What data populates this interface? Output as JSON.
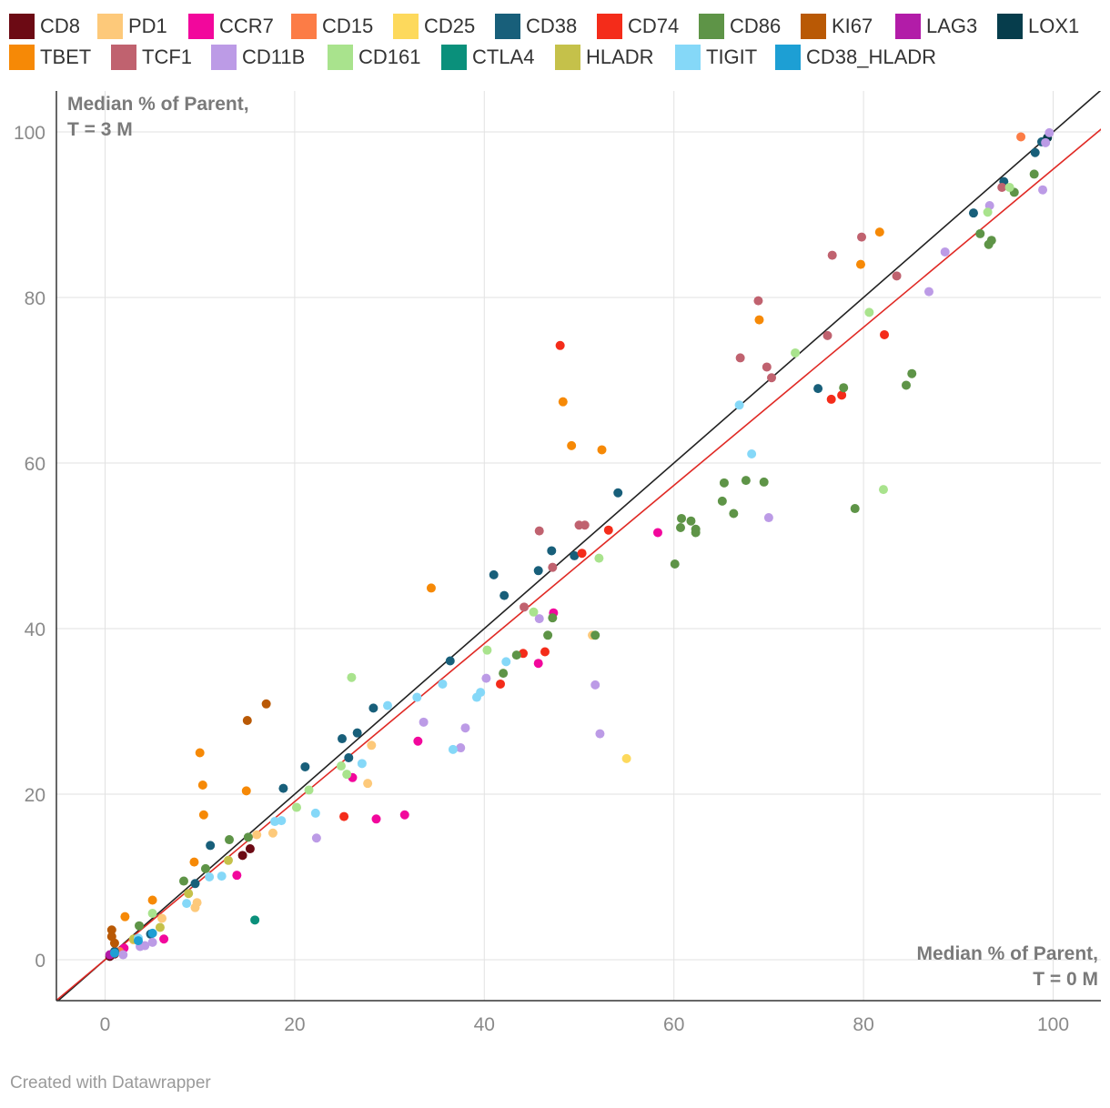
{
  "legend": [
    {
      "name": "CD8",
      "color": "#6c0a14"
    },
    {
      "name": "PD1",
      "color": "#fdc97a"
    },
    {
      "name": "CCR7",
      "color": "#f2079c"
    },
    {
      "name": "CD15",
      "color": "#fc7c46"
    },
    {
      "name": "CD25",
      "color": "#fdd95c"
    },
    {
      "name": "CD38",
      "color": "#185f7a"
    },
    {
      "name": "CD74",
      "color": "#f42c1a"
    },
    {
      "name": "CD86",
      "color": "#5e9447"
    },
    {
      "name": "KI67",
      "color": "#b95905"
    },
    {
      "name": "LAG3",
      "color": "#b21ca8"
    },
    {
      "name": "LOX1",
      "color": "#063d4c"
    },
    {
      "name": "TBET",
      "color": "#f68906"
    },
    {
      "name": "TCF1",
      "color": "#c0626f"
    },
    {
      "name": "CD11B",
      "color": "#bc9be6"
    },
    {
      "name": "CD161",
      "color": "#a9e38d"
    },
    {
      "name": "CTLA4",
      "color": "#0a907b"
    },
    {
      "name": "HLADR",
      "color": "#c5c14a"
    },
    {
      "name": "TIGIT",
      "color": "#85d8f8"
    },
    {
      "name": "CD38_HLADR",
      "color": "#1d9fd4"
    }
  ],
  "footer": "Created with Datawrapper",
  "chart_data": {
    "type": "scatter",
    "title": "",
    "annotation_y": [
      "Median % of Parent,",
      "T = 3 M"
    ],
    "annotation_x": [
      "Median % of Parent,",
      "T = 0 M"
    ],
    "xlim": [
      -5,
      105
    ],
    "ylim": [
      -5,
      105
    ],
    "x_ticks": [
      0,
      20,
      40,
      60,
      80,
      100
    ],
    "y_ticks": [
      0,
      20,
      40,
      60,
      80,
      100
    ],
    "reference_lines": [
      {
        "name": "identity",
        "color": "#222222",
        "slope": 1.0,
        "intercept": 0
      },
      {
        "name": "fit",
        "color": "#e02a25",
        "slope": 0.955,
        "intercept": 0
      }
    ],
    "series": [
      {
        "name": "CD8",
        "points": [
          [
            14.5,
            12.6
          ],
          [
            15.3,
            13.4
          ],
          [
            0.5,
            0.4
          ],
          [
            1.0,
            0.7
          ]
        ]
      },
      {
        "name": "PD1",
        "points": [
          [
            9.5,
            6.3
          ],
          [
            9.7,
            6.9
          ],
          [
            16.0,
            15.1
          ],
          [
            17.7,
            15.3
          ],
          [
            27.7,
            21.3
          ],
          [
            28.1,
            25.9
          ],
          [
            51.4,
            39.2
          ],
          [
            6.0,
            5.0
          ],
          [
            3.0,
            2.4
          ]
        ]
      },
      {
        "name": "CCR7",
        "points": [
          [
            6.2,
            2.5
          ],
          [
            13.9,
            10.2
          ],
          [
            26.1,
            22.0
          ],
          [
            28.6,
            17.0
          ],
          [
            31.6,
            17.5
          ],
          [
            33.0,
            26.4
          ],
          [
            45.7,
            35.8
          ],
          [
            47.3,
            41.9
          ],
          [
            58.3,
            51.6
          ],
          [
            2.0,
            1.4
          ]
        ]
      },
      {
        "name": "CD15",
        "points": [
          [
            96.6,
            99.4
          ],
          [
            1.5,
            1.0
          ]
        ]
      },
      {
        "name": "CD25",
        "points": [
          [
            55.0,
            24.3
          ]
        ]
      },
      {
        "name": "CD38",
        "points": [
          [
            1.0,
            1.0
          ],
          [
            4.8,
            3.1
          ],
          [
            9.5,
            9.2
          ],
          [
            11.1,
            13.8
          ],
          [
            18.8,
            20.7
          ],
          [
            21.1,
            23.3
          ],
          [
            25.0,
            26.7
          ],
          [
            25.7,
            24.4
          ],
          [
            26.6,
            27.4
          ],
          [
            28.3,
            30.4
          ],
          [
            36.4,
            36.1
          ],
          [
            41.0,
            46.5
          ],
          [
            42.1,
            44.0
          ],
          [
            45.7,
            47.0
          ],
          [
            47.1,
            49.4
          ],
          [
            49.5,
            48.8
          ],
          [
            54.1,
            56.4
          ],
          [
            75.2,
            69.0
          ],
          [
            91.6,
            90.2
          ],
          [
            94.8,
            94.0
          ],
          [
            98.1,
            97.5
          ],
          [
            98.8,
            98.8
          ]
        ]
      },
      {
        "name": "CD74",
        "points": [
          [
            25.2,
            17.3
          ],
          [
            41.7,
            33.3
          ],
          [
            44.1,
            37.0
          ],
          [
            46.4,
            37.2
          ],
          [
            48.0,
            74.2
          ],
          [
            50.3,
            49.1
          ],
          [
            53.1,
            51.9
          ],
          [
            76.6,
            67.7
          ],
          [
            77.7,
            68.2
          ],
          [
            82.2,
            75.5
          ]
        ]
      },
      {
        "name": "CD86",
        "points": [
          [
            3.6,
            4.1
          ],
          [
            8.3,
            9.5
          ],
          [
            10.6,
            11.0
          ],
          [
            13.1,
            14.5
          ],
          [
            15.1,
            14.8
          ],
          [
            42.0,
            34.6
          ],
          [
            43.4,
            36.8
          ],
          [
            46.7,
            39.2
          ],
          [
            47.2,
            41.3
          ],
          [
            51.7,
            39.2
          ],
          [
            60.1,
            47.8
          ],
          [
            60.7,
            52.2
          ],
          [
            60.8,
            53.3
          ],
          [
            61.8,
            53.0
          ],
          [
            62.3,
            51.6
          ],
          [
            62.3,
            52.0
          ],
          [
            65.1,
            55.4
          ],
          [
            65.3,
            57.6
          ],
          [
            66.3,
            53.9
          ],
          [
            67.6,
            57.9
          ],
          [
            69.5,
            57.7
          ],
          [
            77.9,
            69.1
          ],
          [
            79.1,
            54.5
          ],
          [
            84.5,
            69.4
          ],
          [
            85.1,
            70.8
          ],
          [
            92.3,
            87.7
          ],
          [
            93.2,
            86.4
          ],
          [
            93.5,
            86.9
          ],
          [
            95.9,
            92.7
          ],
          [
            98.0,
            94.9
          ]
        ]
      },
      {
        "name": "KI67",
        "points": [
          [
            0.7,
            3.6
          ],
          [
            0.7,
            2.8
          ],
          [
            15.0,
            28.9
          ],
          [
            17.0,
            30.9
          ],
          [
            1.0,
            2.0
          ]
        ]
      },
      {
        "name": "LAG3",
        "points": [
          [
            0.5,
            0.6
          ]
        ]
      },
      {
        "name": "LOX1",
        "points": [
          [
            99.4,
            99.3
          ]
        ]
      },
      {
        "name": "TBET",
        "points": [
          [
            2.1,
            5.2
          ],
          [
            5.0,
            7.2
          ],
          [
            9.4,
            11.8
          ],
          [
            10.0,
            25.0
          ],
          [
            10.3,
            21.1
          ],
          [
            10.4,
            17.5
          ],
          [
            14.9,
            20.4
          ],
          [
            34.4,
            44.9
          ],
          [
            48.3,
            67.4
          ],
          [
            49.2,
            62.1
          ],
          [
            52.4,
            61.6
          ],
          [
            69.0,
            77.3
          ],
          [
            79.7,
            84.0
          ],
          [
            81.7,
            87.9
          ]
        ]
      },
      {
        "name": "TCF1",
        "points": [
          [
            44.2,
            42.6
          ],
          [
            45.8,
            51.8
          ],
          [
            47.2,
            47.4
          ],
          [
            50.0,
            52.5
          ],
          [
            50.6,
            52.5
          ],
          [
            67.0,
            72.7
          ],
          [
            68.9,
            79.6
          ],
          [
            69.8,
            71.6
          ],
          [
            70.3,
            70.3
          ],
          [
            76.2,
            75.4
          ],
          [
            76.7,
            85.1
          ],
          [
            79.8,
            87.3
          ],
          [
            83.5,
            82.6
          ],
          [
            94.6,
            93.3
          ]
        ]
      },
      {
        "name": "CD11B",
        "points": [
          [
            1.9,
            0.6
          ],
          [
            3.7,
            1.6
          ],
          [
            4.2,
            1.7
          ],
          [
            5.0,
            2.1
          ],
          [
            22.3,
            14.7
          ],
          [
            33.6,
            28.7
          ],
          [
            37.5,
            25.6
          ],
          [
            38.0,
            28.0
          ],
          [
            40.2,
            34.0
          ],
          [
            45.8,
            41.2
          ],
          [
            51.7,
            33.2
          ],
          [
            52.2,
            27.3
          ],
          [
            70.0,
            53.4
          ],
          [
            86.9,
            80.7
          ],
          [
            88.6,
            85.5
          ],
          [
            93.3,
            91.1
          ],
          [
            98.9,
            93.0
          ],
          [
            99.2,
            98.7
          ],
          [
            99.6,
            99.9
          ]
        ]
      },
      {
        "name": "CD161",
        "points": [
          [
            5.0,
            5.6
          ],
          [
            20.2,
            18.4
          ],
          [
            21.5,
            20.5
          ],
          [
            24.9,
            23.4
          ],
          [
            25.5,
            22.4
          ],
          [
            26.0,
            34.1
          ],
          [
            40.3,
            37.4
          ],
          [
            45.2,
            42.0
          ],
          [
            52.1,
            48.5
          ],
          [
            72.8,
            73.3
          ],
          [
            80.6,
            78.2
          ],
          [
            82.1,
            56.8
          ],
          [
            93.1,
            90.3
          ],
          [
            95.4,
            93.3
          ]
        ]
      },
      {
        "name": "CTLA4",
        "points": [
          [
            15.8,
            4.8
          ]
        ]
      },
      {
        "name": "HLADR",
        "points": [
          [
            3.0,
            2.5
          ],
          [
            5.8,
            3.9
          ],
          [
            8.8,
            8.0
          ],
          [
            13.0,
            12.0
          ]
        ]
      },
      {
        "name": "TIGIT",
        "points": [
          [
            3.5,
            2.6
          ],
          [
            8.6,
            6.8
          ],
          [
            11.0,
            10.0
          ],
          [
            12.3,
            10.1
          ],
          [
            17.9,
            16.7
          ],
          [
            18.6,
            16.8
          ],
          [
            22.2,
            17.7
          ],
          [
            27.1,
            23.7
          ],
          [
            29.8,
            30.7
          ],
          [
            32.9,
            31.7
          ],
          [
            35.6,
            33.3
          ],
          [
            36.7,
            25.4
          ],
          [
            39.2,
            31.7
          ],
          [
            39.6,
            32.3
          ],
          [
            42.3,
            36.0
          ],
          [
            66.9,
            67.0
          ],
          [
            68.2,
            61.1
          ]
        ]
      },
      {
        "name": "CD38_HLADR",
        "points": [
          [
            1.0,
            0.8
          ],
          [
            3.5,
            2.3
          ],
          [
            5.0,
            3.2
          ]
        ]
      }
    ]
  }
}
